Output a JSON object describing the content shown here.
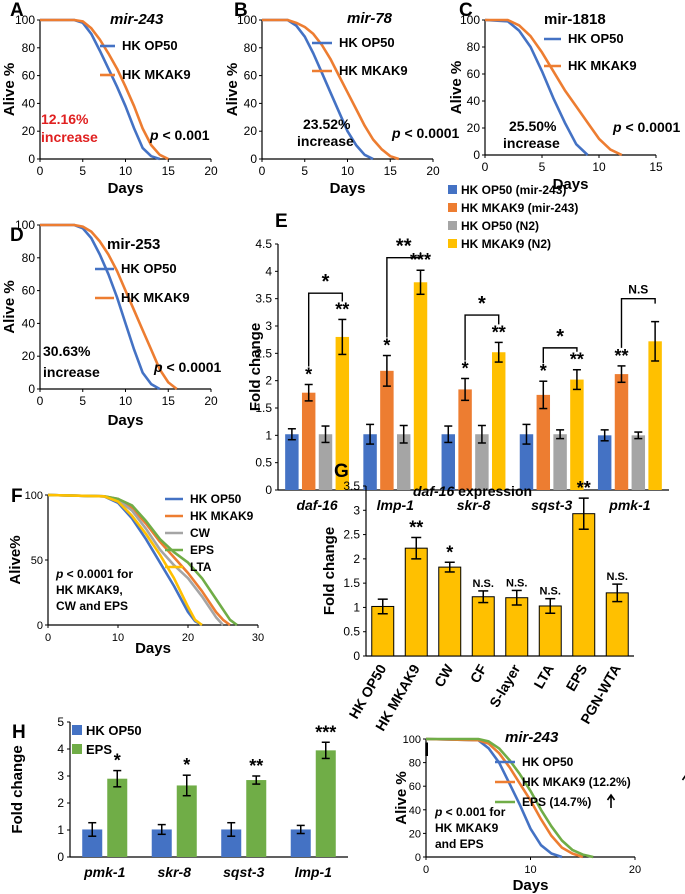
{
  "colors": {
    "blue": "#4472C4",
    "orange": "#ED7D31",
    "gray": "#A5A5A5",
    "yellow": "#FFC000",
    "green": "#70AD47",
    "red": "#E02020",
    "black": "#000000"
  },
  "chart_data": [
    {
      "id": "A",
      "type": "line",
      "panel_label": "A",
      "title": "mir-243",
      "title_italic": true,
      "xlabel": "Days",
      "ylabel": "Alive %",
      "xlim": [
        0,
        20
      ],
      "ylim": [
        0,
        100
      ],
      "xticks": [
        "0",
        "5",
        "10",
        "15",
        "20"
      ],
      "yticks": [
        "0",
        "20",
        "40",
        "60",
        "80",
        "100"
      ],
      "legend": [
        "HK OP50",
        "HK MKAK9"
      ],
      "annotation_lines": [
        "12.16%",
        "increase"
      ],
      "annotation_color": "red",
      "pvalue_prefix": "p",
      "pvalue_suffix": " < 0.001",
      "series": [
        {
          "name": "HK OP50",
          "color": "blue",
          "x": [
            0,
            4,
            5,
            6,
            7,
            8,
            9,
            10,
            11,
            12,
            13,
            14
          ],
          "y": [
            100,
            100,
            98,
            90,
            78,
            65,
            52,
            38,
            22,
            8,
            2,
            0
          ]
        },
        {
          "name": "HK MKAK9",
          "color": "orange",
          "x": [
            0,
            4,
            5,
            6,
            7,
            8,
            9,
            10,
            11,
            12,
            13,
            14,
            15
          ],
          "y": [
            100,
            100,
            99,
            94,
            86,
            76,
            65,
            52,
            38,
            22,
            10,
            3,
            0
          ]
        }
      ]
    },
    {
      "id": "B",
      "type": "line",
      "panel_label": "B",
      "title": "mir-78",
      "title_italic": true,
      "xlabel": "Days",
      "ylabel": "Alive %",
      "xlim": [
        0,
        20
      ],
      "ylim": [
        0,
        100
      ],
      "xticks": [
        "0",
        "5",
        "10",
        "15",
        "20"
      ],
      "yticks": [
        "0",
        "20",
        "40",
        "60",
        "80",
        "100"
      ],
      "legend": [
        "HK OP50",
        "HK MKAK9"
      ],
      "annotation_lines": [
        "23.52%",
        "increase"
      ],
      "annotation_color": "black",
      "pvalue_prefix": "p",
      "pvalue_suffix": " < 0.0001",
      "series": [
        {
          "name": "HK OP50",
          "color": "blue",
          "x": [
            0,
            3,
            4,
            5,
            6,
            7,
            8,
            9,
            10,
            11,
            12,
            13
          ],
          "y": [
            100,
            100,
            96,
            88,
            76,
            62,
            48,
            34,
            20,
            10,
            3,
            0
          ]
        },
        {
          "name": "HK MKAK9",
          "color": "orange",
          "x": [
            0,
            3,
            4,
            5,
            6,
            7,
            8,
            9,
            10,
            11,
            12,
            13,
            14,
            15,
            16
          ],
          "y": [
            100,
            100,
            98,
            95,
            90,
            82,
            72,
            60,
            48,
            36,
            24,
            14,
            7,
            2,
            0
          ]
        }
      ]
    },
    {
      "id": "C",
      "type": "line",
      "panel_label": "C",
      "title": "mir-1818",
      "title_italic": false,
      "xlabel": "Days",
      "ylabel": "Alive %",
      "xlim": [
        0,
        15
      ],
      "ylim": [
        0,
        100
      ],
      "xticks": [
        "0",
        "5",
        "10",
        "15"
      ],
      "yticks": [
        "0",
        "20",
        "40",
        "60",
        "80",
        "100"
      ],
      "legend": [
        "HK OP50",
        "HK MKAK9"
      ],
      "annotation_lines": [
        "25.50%",
        "increase"
      ],
      "annotation_color": "black",
      "pvalue_prefix": "p",
      "pvalue_suffix": " < 0.0001",
      "series": [
        {
          "name": "HK OP50",
          "color": "blue",
          "x": [
            0,
            2,
            3,
            4,
            5,
            6,
            7,
            8,
            9
          ],
          "y": [
            100,
            99,
            92,
            80,
            62,
            42,
            24,
            8,
            0
          ]
        },
        {
          "name": "HK MKAK9",
          "color": "orange",
          "x": [
            0,
            2,
            3,
            4,
            5,
            6,
            7,
            8,
            9,
            10,
            11,
            12
          ],
          "y": [
            100,
            100,
            96,
            88,
            76,
            62,
            48,
            36,
            24,
            12,
            4,
            0
          ]
        }
      ]
    },
    {
      "id": "D",
      "type": "line",
      "panel_label": "D",
      "title": "mir-253",
      "title_italic": false,
      "xlabel": "Days",
      "ylabel": "Alive %",
      "xlim": [
        0,
        20
      ],
      "ylim": [
        0,
        100
      ],
      "xticks": [
        "0",
        "5",
        "10",
        "15",
        "20"
      ],
      "yticks": [
        "0",
        "20",
        "40",
        "60",
        "80",
        "100"
      ],
      "legend": [
        "HK OP50",
        "HK MKAK9"
      ],
      "annotation_lines": [
        "30.63%",
        "increase"
      ],
      "annotation_color": "black",
      "pvalue_prefix": "p",
      "pvalue_suffix": " < 0.0001",
      "series": [
        {
          "name": "HK OP50",
          "color": "blue",
          "x": [
            0,
            4,
            5,
            6,
            7,
            8,
            9,
            10,
            11,
            12,
            13,
            14
          ],
          "y": [
            100,
            100,
            98,
            92,
            82,
            70,
            56,
            40,
            24,
            10,
            3,
            0
          ]
        },
        {
          "name": "HK MKAK9",
          "color": "orange",
          "x": [
            0,
            4,
            5,
            6,
            7,
            8,
            9,
            10,
            11,
            12,
            13,
            14,
            15,
            16
          ],
          "y": [
            100,
            100,
            99,
            96,
            90,
            82,
            72,
            60,
            48,
            36,
            24,
            12,
            4,
            0
          ]
        }
      ]
    },
    {
      "id": "E",
      "type": "bar",
      "panel_label": "E",
      "ylabel": "Fold change",
      "ylim": [
        0,
        4.5
      ],
      "yticks": [
        "0",
        "0.5",
        "1",
        "1.5",
        "2",
        "2.5",
        "3",
        "3.5",
        "4",
        "4.5"
      ],
      "categories": [
        "daf-16",
        "lmp-1",
        "skr-8",
        "sqst-3",
        "pmk-1"
      ],
      "categories_italic": true,
      "series": [
        {
          "name": "HK OP50 (mir-243)",
          "color": "blue",
          "values": [
            1.02,
            1.02,
            1.02,
            1.02,
            1.0
          ],
          "errors": [
            0.1,
            0.18,
            0.15,
            0.18,
            0.1
          ],
          "stars": [
            "",
            "",
            "",
            "",
            ""
          ]
        },
        {
          "name": "HK MKAK9 (mir-243)",
          "color": "orange",
          "values": [
            1.78,
            2.18,
            1.84,
            1.74,
            2.12
          ],
          "errors": [
            0.15,
            0.28,
            0.2,
            0.25,
            0.15
          ],
          "stars": [
            "*",
            "*",
            "*",
            "*",
            "**"
          ]
        },
        {
          "name": "HK OP50 (N2)",
          "color": "gray",
          "values": [
            1.02,
            1.02,
            1.02,
            1.02,
            1.0
          ],
          "errors": [
            0.15,
            0.16,
            0.16,
            0.08,
            0.06
          ],
          "stars": [
            "",
            "",
            "",
            "",
            ""
          ]
        },
        {
          "name": "HK MKAK9 (N2)",
          "color": "yellow",
          "values": [
            2.8,
            3.8,
            2.52,
            2.02,
            2.72
          ],
          "errors": [
            0.32,
            0.22,
            0.18,
            0.18,
            0.36
          ],
          "stars": [
            "**",
            "***",
            "**",
            "**",
            ""
          ]
        }
      ],
      "brackets": [
        {
          "category": 0,
          "label": "*",
          "y": 3.6
        },
        {
          "category": 1,
          "label": "**",
          "y": 4.25
        },
        {
          "category": 2,
          "label": "*",
          "y": 3.2
        },
        {
          "category": 3,
          "label": "*",
          "y": 2.6
        },
        {
          "category": 4,
          "label": "N.S",
          "y": 3.5
        }
      ]
    },
    {
      "id": "F",
      "type": "line",
      "panel_label": "F",
      "xlabel": "Days",
      "ylabel": "Alive%",
      "xlim": [
        0,
        30
      ],
      "ylim": [
        0,
        100
      ],
      "xticks": [
        "0",
        "10",
        "20",
        "30"
      ],
      "yticks": [
        "0",
        "50",
        "100"
      ],
      "legend": [
        "HK OP50",
        "HK MKAK9",
        "CW",
        "EPS",
        "LTA"
      ],
      "annotation_lines": [
        "p < 0.0001 for",
        "HK MKAK9,",
        "CW and EPS"
      ],
      "pvalue_prefix": "p",
      "series": [
        {
          "name": "HK OP50",
          "color": "blue",
          "x": [
            0,
            8,
            10,
            12,
            14,
            16,
            18,
            19,
            20,
            21,
            22
          ],
          "y": [
            100,
            99,
            94,
            82,
            66,
            48,
            30,
            20,
            10,
            3,
            0
          ]
        },
        {
          "name": "HK MKAK9",
          "color": "orange",
          "x": [
            0,
            8,
            10,
            12,
            14,
            16,
            18,
            20,
            22,
            24,
            25,
            26
          ],
          "y": [
            100,
            99,
            97,
            90,
            78,
            64,
            52,
            40,
            26,
            10,
            4,
            0
          ]
        },
        {
          "name": "CW",
          "color": "gray",
          "x": [
            0,
            8,
            10,
            12,
            14,
            16,
            18,
            20,
            22,
            24,
            25
          ],
          "y": [
            100,
            99,
            96,
            88,
            74,
            58,
            46,
            36,
            22,
            6,
            0
          ]
        },
        {
          "name": "EPS",
          "color": "green",
          "x": [
            0,
            8,
            10,
            12,
            14,
            16,
            18,
            20,
            22,
            24,
            26,
            27
          ],
          "y": [
            100,
            99,
            97,
            92,
            80,
            66,
            56,
            48,
            36,
            20,
            4,
            0
          ]
        },
        {
          "name": "LTA",
          "color": "yellow",
          "x": [
            0,
            8,
            10,
            12,
            14,
            16,
            18,
            20,
            21,
            22
          ],
          "y": [
            100,
            99,
            95,
            84,
            70,
            54,
            36,
            14,
            4,
            0
          ]
        }
      ]
    },
    {
      "id": "G",
      "type": "bar",
      "panel_label": "G",
      "title": "daf-16 expression",
      "title_italic_part": "daf-16",
      "ylabel": "Fold change",
      "ylim": [
        0,
        3.5
      ],
      "yticks": [
        "0",
        "0.5",
        "1",
        "1.5",
        "2",
        "2.5",
        "3",
        "3.5"
      ],
      "categories": [
        "HK OP50",
        "HK MKAK9",
        "CW",
        "CF",
        "S-layer",
        "LTA",
        "EPS",
        "PGN-WTA"
      ],
      "series": [
        {
          "name": "daf-16",
          "color": "yellow",
          "values": [
            1.02,
            2.22,
            1.83,
            1.22,
            1.2,
            1.03,
            2.93,
            1.3
          ],
          "errors": [
            0.15,
            0.22,
            0.1,
            0.12,
            0.15,
            0.15,
            0.32,
            0.18
          ],
          "stars": [
            "",
            "**",
            "*",
            "N.S.",
            "N.S.",
            "N.S.",
            "**",
            "N.S."
          ]
        }
      ]
    },
    {
      "id": "H",
      "type": "bar",
      "panel_label": "H",
      "ylabel": "Fold change",
      "ylim": [
        0,
        5
      ],
      "yticks": [
        "0",
        "1",
        "2",
        "3",
        "4",
        "5"
      ],
      "categories": [
        "pmk-1",
        "skr-8",
        "sqst-3",
        "lmp-1"
      ],
      "categories_italic": true,
      "series": [
        {
          "name": "HK OP50",
          "color": "blue",
          "values": [
            1.02,
            1.02,
            1.02,
            1.02
          ],
          "errors": [
            0.25,
            0.18,
            0.25,
            0.15
          ],
          "stars": [
            "",
            "",
            "",
            ""
          ]
        },
        {
          "name": "EPS",
          "color": "green",
          "values": [
            2.9,
            2.65,
            2.85,
            3.95
          ],
          "errors": [
            0.3,
            0.38,
            0.15,
            0.3
          ],
          "stars": [
            "*",
            "*",
            "**",
            "***"
          ]
        }
      ]
    },
    {
      "id": "I",
      "type": "line",
      "panel_label": "I",
      "title": "mir-243",
      "title_italic": true,
      "xlabel": "Days",
      "ylabel": "Alive %",
      "xlim": [
        0,
        20
      ],
      "ylim": [
        0,
        100
      ],
      "xticks": [
        "0",
        "10",
        "20"
      ],
      "yticks": [
        "0",
        "20",
        "40",
        "60",
        "80",
        "100"
      ],
      "legend": [
        "HK OP50",
        "HK MKAK9 (12.2%)",
        "EPS (14.7%)"
      ],
      "annotation_lines": [
        "p < 0.001 for",
        "HK MKAK9",
        "and EPS"
      ],
      "pvalue_prefix": "p",
      "series": [
        {
          "name": "HK OP50",
          "color": "blue",
          "x": [
            0,
            5,
            6,
            7,
            8,
            9,
            10,
            11,
            12,
            13
          ],
          "y": [
            100,
            99,
            92,
            80,
            62,
            44,
            24,
            10,
            3,
            0
          ]
        },
        {
          "name": "HK MKAK9 (12.2%)",
          "color": "orange",
          "x": [
            0,
            5,
            6,
            7,
            8,
            9,
            10,
            11,
            12,
            13,
            14,
            15
          ],
          "y": [
            100,
            99,
            96,
            88,
            76,
            62,
            48,
            32,
            18,
            8,
            3,
            0
          ]
        },
        {
          "name": "EPS (14.7%)",
          "color": "green",
          "x": [
            0,
            5,
            6,
            7,
            8,
            9,
            10,
            11,
            12,
            13,
            14,
            15,
            16
          ],
          "y": [
            100,
            100,
            98,
            92,
            82,
            70,
            56,
            40,
            26,
            14,
            6,
            2,
            0
          ]
        }
      ]
    }
  ]
}
